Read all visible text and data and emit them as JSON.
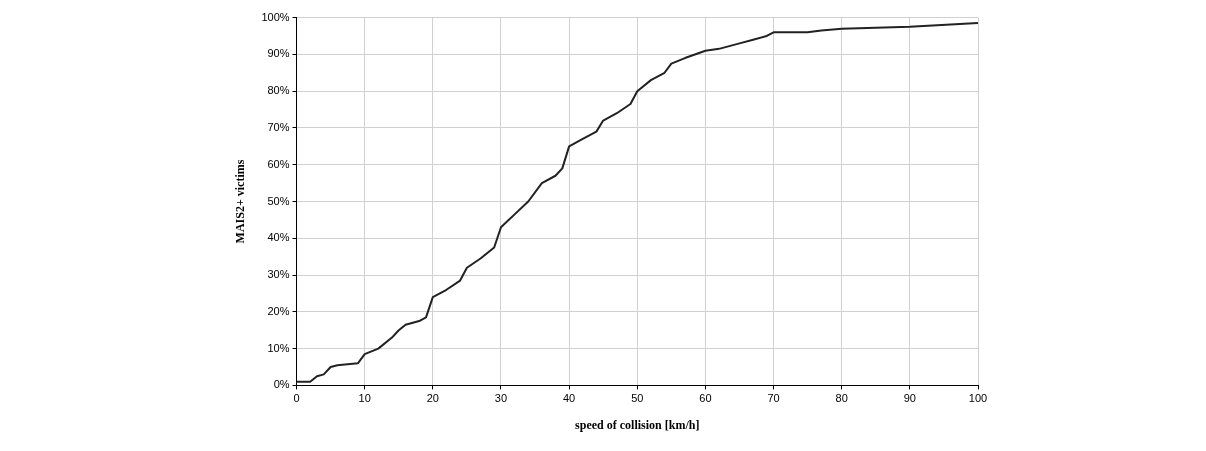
{
  "chart_data": {
    "type": "line",
    "xlabel": "speed of collision [km/h]",
    "ylabel": "MAIS2+ victims",
    "series": [
      {
        "color": "#222222",
        "x": [
          0,
          2,
          3,
          4,
          5,
          6,
          9,
          10,
          12,
          14,
          15,
          16,
          18,
          19,
          20,
          22,
          24,
          25,
          27,
          29,
          30,
          32,
          34,
          36,
          38,
          39,
          40,
          42,
          44,
          45,
          47,
          49,
          50,
          52,
          54,
          55,
          57,
          60,
          62,
          65,
          67,
          69,
          70,
          75,
          77,
          80,
          90,
          100
        ],
        "values": [
          1,
          1,
          2.5,
          3,
          5,
          5.5,
          6,
          8.5,
          10,
          13,
          15,
          16.5,
          17.5,
          18.5,
          24,
          26,
          28.5,
          32,
          34.5,
          37.5,
          43,
          46.5,
          50,
          55,
          57,
          59,
          65,
          67,
          69,
          72,
          74,
          76.5,
          80,
          83,
          85,
          87.5,
          89,
          91,
          91.5,
          93,
          94,
          95,
          96,
          96,
          96.5,
          97,
          97.5,
          98.5
        ]
      }
    ],
    "xlim": [
      0,
      100
    ],
    "xticks": [
      0,
      10,
      20,
      30,
      40,
      50,
      60,
      70,
      80,
      90,
      100
    ],
    "ylim": [
      0,
      100
    ],
    "yticks": [
      {
        "value": 0,
        "label": "0%"
      },
      {
        "value": 10,
        "label": "10%"
      },
      {
        "value": 20,
        "label": "20%"
      },
      {
        "value": 30,
        "label": "30%"
      },
      {
        "value": 40,
        "label": "40%"
      },
      {
        "value": 50,
        "label": "50%"
      },
      {
        "value": 60,
        "label": "60%"
      },
      {
        "value": 70,
        "label": "70%"
      },
      {
        "value": 80,
        "label": "80%"
      },
      {
        "value": 90,
        "label": "90%"
      },
      {
        "value": 100,
        "label": "100%"
      }
    ],
    "grid": true,
    "legend": false,
    "marker": "none",
    "line_style": "solid"
  }
}
